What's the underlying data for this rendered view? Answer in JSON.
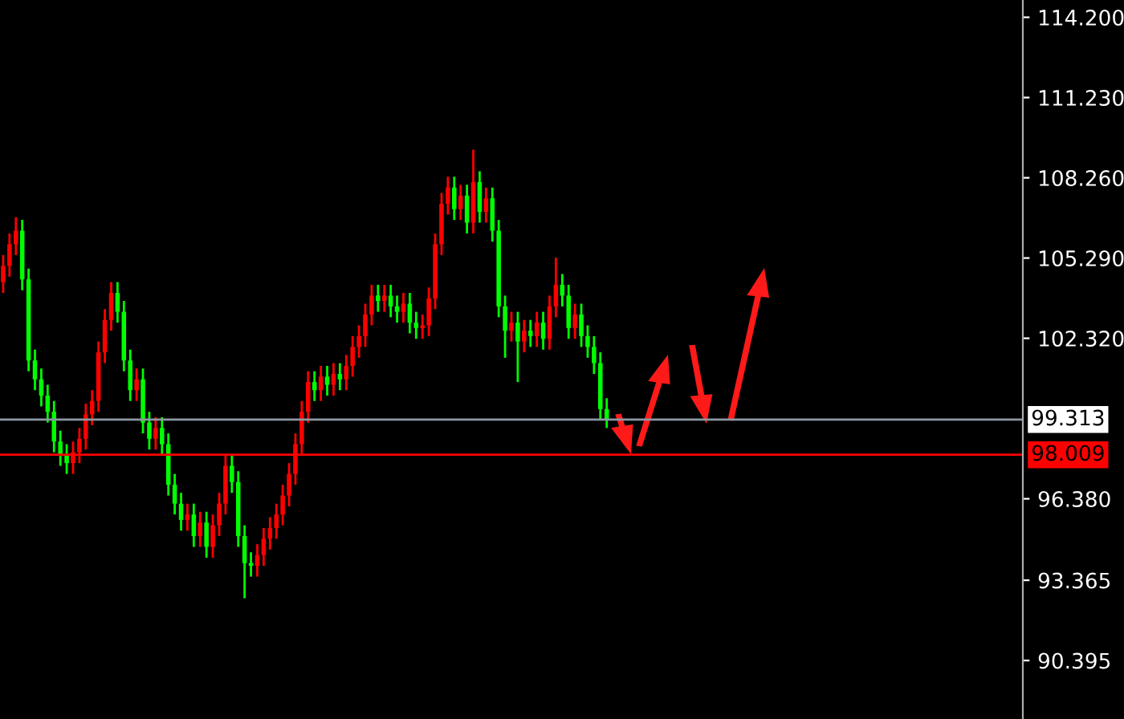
{
  "chart_data": {
    "type": "candlestick",
    "categories": [
      null,
      null,
      null,
      null,
      null,
      null,
      null,
      null,
      null,
      null,
      null,
      null,
      null,
      null,
      null,
      null,
      null,
      null,
      null,
      null,
      null,
      null,
      null,
      null,
      null,
      null,
      null,
      null,
      null,
      null,
      null,
      null,
      null,
      null,
      null,
      null,
      null,
      null,
      null,
      null,
      null,
      null,
      null,
      null,
      null,
      null,
      null,
      null,
      null,
      null,
      null,
      null,
      null,
      null,
      null,
      null,
      null,
      null,
      null,
      null,
      null,
      null,
      null,
      null,
      null,
      null,
      null,
      null,
      null,
      null,
      null,
      null,
      null,
      null,
      null,
      null,
      null,
      null,
      null,
      null,
      null,
      null,
      null,
      null,
      null,
      null,
      null,
      null,
      null,
      null,
      null,
      null,
      null,
      null,
      null,
      null,
      null,
      null,
      null,
      null,
      null,
      null,
      null,
      null,
      null,
      null,
      null,
      null,
      null,
      null,
      null,
      null,
      null,
      null,
      null,
      null,
      null,
      null,
      null,
      null,
      null,
      null,
      null,
      null,
      null,
      null,
      null,
      null,
      null,
      null,
      null,
      null,
      null,
      null,
      null,
      null,
      null,
      null,
      null,
      null,
      null,
      null,
      null,
      null,
      null,
      null,
      null,
      null,
      null,
      null,
      null,
      null,
      null,
      null,
      null,
      null,
      null,
      null,
      null,
      null,
      null
    ],
    "ohlc": [
      [
        104.4,
        105.4,
        104.0,
        105.0
      ],
      [
        105.0,
        106.2,
        104.6,
        105.8
      ],
      [
        105.8,
        106.8,
        105.4,
        106.3
      ],
      [
        106.3,
        106.7,
        104.1,
        104.5
      ],
      [
        104.5,
        104.9,
        101.1,
        101.5
      ],
      [
        101.5,
        101.9,
        100.4,
        100.8
      ],
      [
        100.8,
        101.2,
        99.8,
        100.2
      ],
      [
        100.2,
        100.6,
        99.2,
        99.6
      ],
      [
        99.6,
        100.0,
        98.1,
        98.5
      ],
      [
        98.5,
        98.9,
        97.6,
        98.0
      ],
      [
        98.0,
        98.4,
        97.3,
        97.7
      ],
      [
        97.7,
        98.5,
        97.3,
        98.1
      ],
      [
        98.1,
        99.0,
        97.7,
        98.6
      ],
      [
        98.6,
        99.9,
        98.2,
        99.5
      ],
      [
        99.5,
        100.4,
        99.1,
        100.0
      ],
      [
        100.0,
        102.2,
        99.6,
        101.8
      ],
      [
        101.8,
        103.4,
        101.4,
        103.0
      ],
      [
        103.0,
        104.4,
        102.6,
        104.0
      ],
      [
        104.0,
        104.4,
        102.9,
        103.3
      ],
      [
        103.3,
        103.7,
        101.1,
        101.5
      ],
      [
        101.5,
        101.9,
        100.0,
        100.4
      ],
      [
        100.4,
        101.2,
        100.0,
        100.8
      ],
      [
        100.8,
        101.2,
        98.8,
        99.2
      ],
      [
        99.2,
        99.6,
        98.2,
        98.6
      ],
      [
        98.6,
        99.4,
        98.2,
        99.0
      ],
      [
        99.0,
        99.4,
        98.0,
        98.4
      ],
      [
        98.4,
        98.8,
        96.5,
        96.9
      ],
      [
        96.9,
        97.3,
        95.8,
        96.2
      ],
      [
        96.2,
        96.6,
        95.2,
        95.6
      ],
      [
        95.6,
        96.2,
        95.2,
        95.8
      ],
      [
        95.8,
        96.2,
        94.6,
        95.0
      ],
      [
        95.0,
        95.9,
        94.6,
        95.5
      ],
      [
        95.5,
        95.9,
        94.2,
        94.6
      ],
      [
        94.6,
        95.8,
        94.2,
        95.4
      ],
      [
        95.4,
        96.6,
        95.0,
        96.2
      ],
      [
        96.2,
        98.0,
        95.8,
        97.6
      ],
      [
        97.6,
        98.0,
        96.6,
        97.0
      ],
      [
        97.0,
        97.4,
        94.6,
        95.0
      ],
      [
        95.0,
        95.4,
        92.7,
        94.0
      ],
      [
        94.0,
        94.4,
        93.5,
        93.9
      ],
      [
        93.9,
        94.7,
        93.5,
        94.3
      ],
      [
        94.3,
        95.3,
        93.9,
        94.9
      ],
      [
        94.9,
        95.7,
        94.5,
        95.3
      ],
      [
        95.3,
        96.2,
        94.9,
        95.8
      ],
      [
        95.8,
        96.9,
        95.4,
        96.5
      ],
      [
        96.5,
        97.7,
        96.1,
        97.3
      ],
      [
        97.3,
        98.8,
        96.9,
        98.4
      ],
      [
        98.4,
        100.0,
        98.0,
        99.6
      ],
      [
        99.6,
        101.1,
        99.2,
        100.7
      ],
      [
        100.7,
        101.1,
        100.0,
        100.4
      ],
      [
        100.4,
        101.3,
        100.0,
        100.9
      ],
      [
        100.9,
        101.3,
        100.2,
        100.6
      ],
      [
        100.6,
        101.4,
        100.2,
        101.0
      ],
      [
        101.0,
        101.4,
        100.4,
        100.8
      ],
      [
        100.8,
        101.7,
        100.4,
        101.3
      ],
      [
        101.3,
        102.4,
        100.9,
        102.0
      ],
      [
        102.0,
        102.8,
        101.6,
        102.4
      ],
      [
        102.4,
        103.6,
        102.0,
        103.2
      ],
      [
        103.2,
        104.3,
        102.8,
        103.9
      ],
      [
        103.9,
        104.3,
        103.3,
        103.7
      ],
      [
        103.7,
        104.3,
        103.3,
        103.9
      ],
      [
        103.9,
        104.3,
        103.1,
        103.5
      ],
      [
        103.5,
        103.9,
        102.9,
        103.3
      ],
      [
        103.3,
        104.0,
        102.9,
        103.6
      ],
      [
        103.6,
        104.0,
        102.5,
        102.9
      ],
      [
        102.9,
        103.3,
        102.3,
        102.7
      ],
      [
        102.7,
        103.2,
        102.3,
        102.8
      ],
      [
        102.8,
        104.2,
        102.4,
        103.8
      ],
      [
        103.8,
        106.2,
        103.4,
        105.8
      ],
      [
        105.8,
        107.7,
        105.4,
        107.3
      ],
      [
        107.3,
        108.3,
        106.9,
        107.9
      ],
      [
        107.9,
        108.3,
        106.7,
        107.1
      ],
      [
        107.1,
        108.0,
        106.7,
        107.6
      ],
      [
        107.6,
        108.0,
        106.2,
        106.6
      ],
      [
        106.6,
        109.3,
        106.2,
        108.1
      ],
      [
        108.1,
        108.5,
        106.6,
        107.0
      ],
      [
        107.0,
        107.9,
        106.6,
        107.5
      ],
      [
        107.5,
        107.9,
        105.9,
        106.3
      ],
      [
        106.3,
        106.7,
        103.1,
        103.5
      ],
      [
        103.5,
        103.9,
        101.6,
        102.6
      ],
      [
        102.6,
        103.3,
        102.2,
        102.9
      ],
      [
        102.9,
        103.3,
        100.7,
        102.2
      ],
      [
        102.2,
        103.0,
        101.8,
        102.6
      ],
      [
        102.6,
        103.0,
        102.0,
        102.4
      ],
      [
        102.4,
        103.3,
        102.0,
        102.9
      ],
      [
        102.9,
        103.3,
        101.9,
        102.3
      ],
      [
        102.3,
        103.9,
        101.9,
        103.5
      ],
      [
        103.5,
        105.3,
        103.1,
        104.3
      ],
      [
        104.3,
        104.7,
        103.5,
        103.9
      ],
      [
        103.9,
        104.3,
        102.3,
        102.7
      ],
      [
        102.7,
        103.6,
        102.3,
        103.2
      ],
      [
        103.2,
        103.6,
        102.0,
        102.4
      ],
      [
        102.4,
        102.8,
        101.6,
        102.0
      ],
      [
        102.0,
        102.4,
        101.0,
        101.4
      ],
      [
        101.4,
        101.8,
        99.3,
        99.7
      ],
      [
        99.7,
        100.1,
        99.0,
        99.3
      ],
      null,
      null,
      null,
      null,
      null,
      null,
      null,
      null,
      null,
      null,
      null,
      null,
      null,
      null,
      null,
      null,
      null,
      null,
      null,
      null,
      null,
      null,
      null,
      null,
      null,
      null,
      null,
      null,
      null,
      null,
      null,
      null,
      null,
      null,
      null,
      null,
      null,
      null,
      null,
      null,
      null,
      null,
      null,
      null,
      null,
      null,
      null,
      null,
      null,
      null,
      null,
      null,
      null,
      null,
      null,
      null,
      null,
      null,
      null,
      null,
      null,
      null,
      null,
      null,
      null
    ],
    "colors": [
      "#ff0000",
      "#ff0000",
      "#ff0000",
      "#00ff00",
      "#00ff00",
      "#00ff00",
      "#00ff00",
      "#00ff00",
      "#00ff00",
      "#00ff00",
      "#00ff00",
      "#ff0000",
      "#ff0000",
      "#ff0000",
      "#ff0000",
      "#ff0000",
      "#ff0000",
      "#ff0000",
      "#00ff00",
      "#00ff00",
      "#00ff00",
      "#ff0000",
      "#00ff00",
      "#00ff00",
      "#ff0000",
      "#00ff00",
      "#00ff00",
      "#00ff00",
      "#00ff00",
      "#ff0000",
      "#00ff00",
      "#ff0000",
      "#00ff00",
      "#ff0000",
      "#ff0000",
      "#ff0000",
      "#00ff00",
      "#00ff00",
      "#00ff00",
      "#00ff00",
      "#ff0000",
      "#ff0000",
      "#ff0000",
      "#ff0000",
      "#ff0000",
      "#ff0000",
      "#ff0000",
      "#ff0000",
      "#ff0000",
      "#00ff00",
      "#ff0000",
      "#00ff00",
      "#ff0000",
      "#00ff00",
      "#ff0000",
      "#ff0000",
      "#ff0000",
      "#ff0000",
      "#ff0000",
      "#00ff00",
      "#ff0000",
      "#00ff00",
      "#00ff00",
      "#ff0000",
      "#00ff00",
      "#00ff00",
      "#ff0000",
      "#ff0000",
      "#ff0000",
      "#ff0000",
      "#ff0000",
      "#00ff00",
      "#ff0000",
      "#00ff00",
      "#ff0000",
      "#00ff00",
      "#ff0000",
      "#00ff00",
      "#00ff00",
      "#00ff00",
      "#ff0000",
      "#00ff00",
      "#ff0000",
      "#00ff00",
      "#ff0000",
      "#00ff00",
      "#ff0000",
      "#ff0000",
      "#00ff00",
      "#00ff00",
      "#ff0000",
      "#00ff00",
      "#00ff00",
      "#00ff00",
      "#00ff00",
      "#00ff00",
      null,
      null,
      null,
      null,
      null,
      null,
      null,
      null,
      null,
      null,
      null,
      null,
      null,
      null,
      null,
      null,
      null,
      null,
      null,
      null,
      null,
      null,
      null,
      null,
      null,
      null,
      null,
      null,
      null,
      null,
      null,
      null,
      null,
      null,
      null,
      null,
      null,
      null,
      null,
      null,
      null,
      null,
      null,
      null,
      null,
      null,
      null,
      null,
      null,
      null,
      null,
      null,
      null,
      null,
      null,
      null,
      null,
      null,
      null,
      null,
      null,
      null,
      null,
      null,
      null
    ],
    "ylim": [
      88.23,
      114.84
    ],
    "yticks": [
      {
        "value": 114.2,
        "label": "114.200"
      },
      {
        "value": 111.23,
        "label": "111.230"
      },
      {
        "value": 108.26,
        "label": "108.260"
      },
      {
        "value": 105.29,
        "label": "105.290"
      },
      {
        "value": 102.32,
        "label": "102.320"
      },
      {
        "value": 96.38,
        "label": "96.380"
      },
      {
        "value": 93.365,
        "label": "93.365"
      },
      {
        "value": 90.395,
        "label": "90.395"
      }
    ],
    "ref_lines": [
      {
        "axis": "y",
        "value": 99.313,
        "label": "99.313",
        "color": "#8c97a3"
      },
      {
        "axis": "y",
        "value": 98.009,
        "label": "98.009",
        "color": "#ff0000"
      }
    ],
    "tick_labels": "y",
    "grid": false,
    "legend": false
  }
}
